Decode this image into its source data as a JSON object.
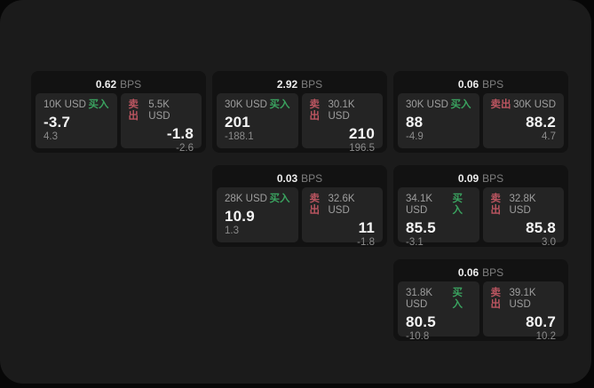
{
  "theme": {
    "outer_bg": "#070707",
    "window_bg": "#1b1b1b",
    "card_bg": "#121212",
    "panel_bg": "#242424",
    "buy_color": "#3aa25f",
    "sell_color": "#bb5560",
    "value_color": "#f5f5f5",
    "muted_color": "#8b8b8b"
  },
  "labels": {
    "bps": "BPS",
    "buy": "买入",
    "sell": "卖出"
  },
  "cards": [
    {
      "col": 1,
      "row": 1,
      "bps": "0.62",
      "buy": {
        "amount": "10K USD",
        "value": "-3.7",
        "delta": "4.3"
      },
      "sell": {
        "amount": "5.5K USD",
        "value": "-1.8",
        "delta": "-2.6"
      }
    },
    {
      "col": 2,
      "row": 1,
      "bps": "2.92",
      "buy": {
        "amount": "30K USD",
        "value": "201",
        "delta": "-188.1"
      },
      "sell": {
        "amount": "30.1K USD",
        "value": "210",
        "delta": "196.5"
      }
    },
    {
      "col": 3,
      "row": 1,
      "bps": "0.06",
      "buy": {
        "amount": "30K USD",
        "value": "88",
        "delta": "-4.9"
      },
      "sell": {
        "amount": "30K USD",
        "value": "88.2",
        "delta": "4.7"
      }
    },
    {
      "col": 2,
      "row": 2,
      "bps": "0.03",
      "buy": {
        "amount": "28K USD",
        "value": "10.9",
        "delta": "1.3"
      },
      "sell": {
        "amount": "32.6K USD",
        "value": "11",
        "delta": "-1.8"
      }
    },
    {
      "col": 3,
      "row": 2,
      "bps": "0.09",
      "buy": {
        "amount": "34.1K USD",
        "value": "85.5",
        "delta": "-3.1"
      },
      "sell": {
        "amount": "32.8K USD",
        "value": "85.8",
        "delta": "3.0"
      }
    },
    {
      "col": 3,
      "row": 3,
      "bps": "0.06",
      "buy": {
        "amount": "31.8K USD",
        "value": "80.5",
        "delta": "-10.8"
      },
      "sell": {
        "amount": "39.1K USD",
        "value": "80.7",
        "delta": "10.2"
      }
    }
  ]
}
